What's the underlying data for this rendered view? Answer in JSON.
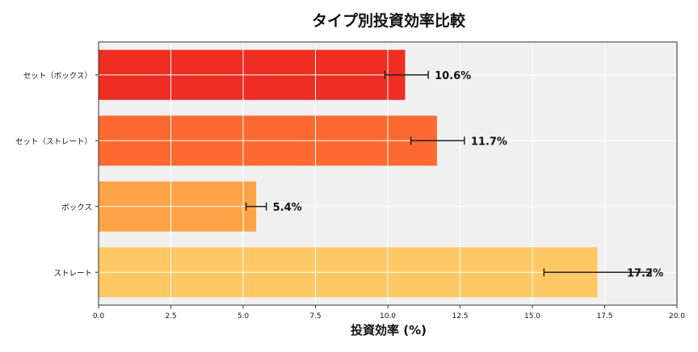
{
  "chart_data": {
    "type": "bar",
    "orientation": "horizontal",
    "title": "タイプ別投資効率比較",
    "xlabel": "投資効率 (%)",
    "ylabel": "",
    "xlim": [
      0,
      20
    ],
    "xticks": [
      "0.0",
      "2.5",
      "5.0",
      "7.5",
      "10.0",
      "12.5",
      "15.0",
      "17.5",
      "20.0"
    ],
    "grid": true,
    "categories": [
      "セット（ボックス）",
      "セット（ストレート）",
      "ボックス",
      "ストレート"
    ],
    "values": [
      10.6,
      11.7,
      5.45,
      17.25
    ],
    "error_low": [
      9.9,
      10.8,
      5.1,
      15.4
    ],
    "error_high": [
      11.4,
      12.65,
      5.8,
      19.1
    ],
    "data_labels": [
      "10.6%",
      "11.7%",
      "5.4%",
      "17.2%"
    ],
    "colors": [
      "#ee2e22",
      "#fd6a31",
      "#fea446",
      "#fec965"
    ],
    "background": "#f0f0f0"
  }
}
